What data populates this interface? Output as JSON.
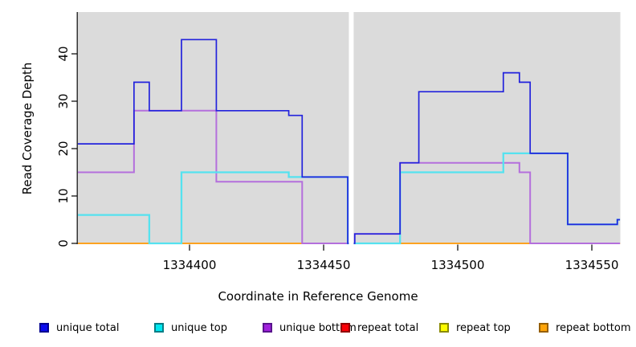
{
  "figure": {
    "background": "#ffffff",
    "panel_color": "#dbdbdb",
    "axis_color": "#000000"
  },
  "chart_data": {
    "type": "line",
    "subtype": "step-coverage-plot",
    "title": "",
    "xlabel": "Coordinate in Reference Genome",
    "ylabel": "Read Coverage Depth",
    "xlim": [
      1334358,
      1334560.5
    ],
    "ylim": [
      0,
      48.8
    ],
    "grid": false,
    "legend_position": "bottom",
    "masked_region": {
      "from": 1334459.4,
      "to": 1334461.2
    },
    "x_ticks": [
      {
        "value": 1334400,
        "label": "1334400"
      },
      {
        "value": 1334450,
        "label": "1334450"
      },
      {
        "value": 1334500,
        "label": "1334500"
      },
      {
        "value": 1334550,
        "label": "1334550"
      }
    ],
    "y_ticks": [
      {
        "value": 0,
        "label": "0"
      },
      {
        "value": 10,
        "label": "10"
      },
      {
        "value": 20,
        "label": "20"
      },
      {
        "value": 30,
        "label": "30"
      },
      {
        "value": 40,
        "label": "40"
      }
    ],
    "series": [
      {
        "name": "unique total",
        "line_color": "#2323dc",
        "line_width": 1.7,
        "legend_fill": "#0b0bee",
        "legend_border": "#000090",
        "segments": [
          {
            "end": 1334459.4,
            "steps": [
              [
                1334358,
                21
              ],
              [
                1334379.3,
                34
              ],
              [
                1334385,
                28
              ],
              [
                1334397,
                43
              ],
              [
                1334410,
                28
              ],
              [
                1334437,
                27
              ],
              [
                1334442,
                14
              ],
              [
                1334459,
                0
              ]
            ]
          },
          {
            "end": 1334560.5,
            "steps": [
              [
                1334461.2,
                0
              ],
              [
                1334461.6,
                2
              ],
              [
                1334478.5,
                17
              ],
              [
                1334485.5,
                32
              ],
              [
                1334517,
                36
              ],
              [
                1334523,
                34
              ],
              [
                1334527,
                19
              ],
              [
                1334541,
                4
              ],
              [
                1334559.5,
                5
              ]
            ]
          }
        ]
      },
      {
        "name": "unique top",
        "line_color": "#55e2ef",
        "line_width": 2.3,
        "legend_fill": "#00e8f0",
        "legend_border": "#067d86",
        "segments": [
          {
            "end": 1334459.4,
            "steps": [
              [
                1334358,
                6
              ],
              [
                1334385,
                0
              ],
              [
                1334397,
                15
              ],
              [
                1334437,
                14
              ],
              [
                1334459,
                0
              ]
            ]
          },
          {
            "end": 1334560.5,
            "steps": [
              [
                1334461.2,
                0
              ],
              [
                1334478.5,
                15
              ],
              [
                1334517,
                19
              ],
              [
                1334541,
                4
              ],
              [
                1334559.5,
                5
              ]
            ]
          }
        ]
      },
      {
        "name": "unique bottom",
        "line_color": "#b46fdc",
        "line_width": 2.0,
        "legend_fill": "#a020dc",
        "legend_border": "#58148c",
        "segments": [
          {
            "end": 1334459.4,
            "steps": [
              [
                1334358,
                15
              ],
              [
                1334379.3,
                28
              ],
              [
                1334410,
                13
              ],
              [
                1334442,
                0
              ]
            ]
          },
          {
            "end": 1334560.5,
            "steps": [
              [
                1334461.2,
                0
              ],
              [
                1334461.6,
                2
              ],
              [
                1334478.5,
                17
              ],
              [
                1334523,
                15
              ],
              [
                1334527,
                0
              ]
            ]
          }
        ]
      },
      {
        "name": "repeat total",
        "line_color": "#e8304a",
        "line_width": 1.6,
        "legend_fill": "#fb0007",
        "legend_border": "#900000",
        "segments": [
          {
            "end": 1334459.4,
            "steps": [
              [
                1334358,
                0
              ]
            ]
          },
          {
            "end": 1334560.5,
            "steps": [
              [
                1334461.2,
                0
              ]
            ]
          }
        ]
      },
      {
        "name": "repeat top",
        "line_color": "#f2f20a",
        "line_width": 1.6,
        "legend_fill": "#fdfd00",
        "legend_border": "#8a8a00",
        "segments": [
          {
            "end": 1334459.4,
            "steps": [
              [
                1334358,
                0
              ]
            ]
          },
          {
            "end": 1334560.5,
            "steps": [
              [
                1334461.2,
                0
              ]
            ]
          }
        ]
      },
      {
        "name": "repeat bottom",
        "line_color": "#ff9f1a",
        "line_width": 1.7,
        "legend_fill": "#ffa50a",
        "legend_border": "#965f00",
        "segments": [
          {
            "end": 1334459.4,
            "steps": [
              [
                1334358,
                0
              ]
            ]
          },
          {
            "end": 1334560.5,
            "steps": [
              [
                1334461.2,
                0
              ]
            ]
          }
        ]
      }
    ],
    "draw_order": [
      "repeat total",
      "repeat top",
      "repeat bottom",
      "unique bottom",
      "unique top",
      "unique total"
    ]
  }
}
